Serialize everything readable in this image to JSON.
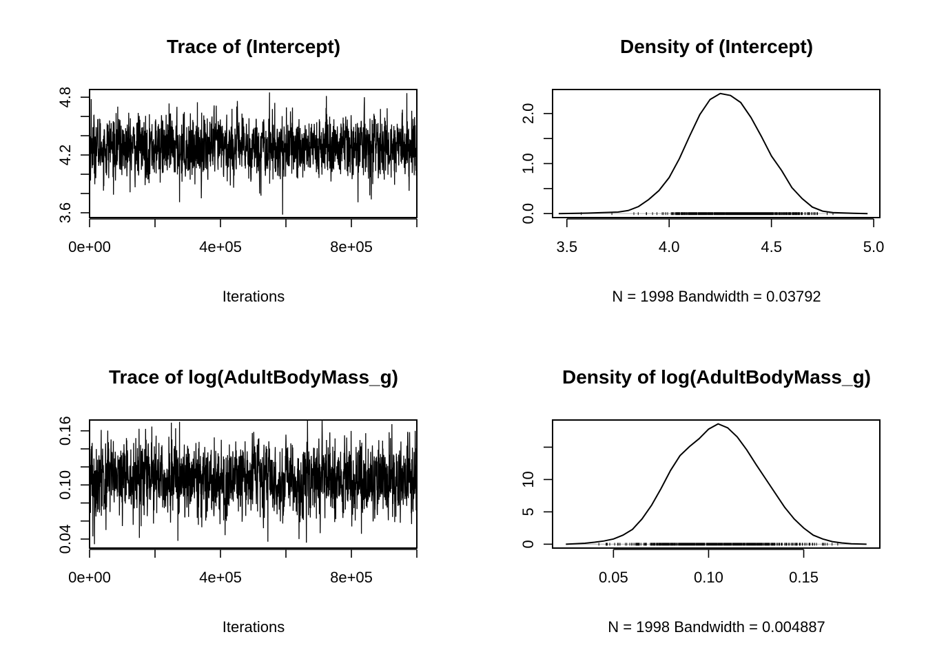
{
  "chart_data": [
    {
      "type": "line",
      "title": "Trace of (Intercept)",
      "xlabel": "Iterations",
      "ylabel": "",
      "xlim": [
        0,
        1000000
      ],
      "ylim": [
        3.55,
        4.88
      ],
      "x_ticks": [
        0,
        200000,
        400000,
        600000,
        800000,
        1000000
      ],
      "x_tick_labels": [
        "0e+00",
        "4e+05",
        "8e+05"
      ],
      "x_tick_label_values": [
        0,
        400000,
        800000
      ],
      "y_ticks": [
        3.6,
        3.8,
        4.0,
        4.2,
        4.4,
        4.6,
        4.8
      ],
      "y_tick_labels": [
        "3.6",
        "4.2",
        "4.8"
      ],
      "y_tick_label_values": [
        3.6,
        4.2,
        4.8
      ],
      "series": [
        {
          "n_samples": 1998,
          "center": 4.28,
          "spread": 0.165,
          "extremes": [
            [
              275000,
              3.71
            ],
            [
              590000,
              3.58
            ],
            [
              440000,
              3.86
            ],
            [
              550000,
              4.85
            ],
            [
              5000,
              4.78
            ],
            [
              840000,
              4.8
            ]
          ]
        }
      ]
    },
    {
      "type": "line",
      "title": "Density of (Intercept)",
      "xlabel": "N = 1998   Bandwidth = 0.03792",
      "ylabel": "",
      "xlim": [
        3.43,
        5.03
      ],
      "ylim": [
        -0.08,
        2.48
      ],
      "x_ticks": [
        3.5,
        4.0,
        4.5,
        5.0
      ],
      "x_tick_labels": [
        "3.5",
        "4.0",
        "4.5",
        "5.0"
      ],
      "x_tick_label_values": [
        3.5,
        4.0,
        4.5,
        5.0
      ],
      "y_ticks": [
        0.0,
        0.5,
        1.0,
        1.5,
        2.0
      ],
      "y_tick_labels": [
        "0.0",
        "1.0",
        "2.0"
      ],
      "y_tick_label_values": [
        0.0,
        1.0,
        2.0
      ],
      "series": [
        {
          "x": [
            3.46,
            3.6,
            3.75,
            3.8,
            3.85,
            3.9,
            3.95,
            4.0,
            4.05,
            4.1,
            4.15,
            4.2,
            4.25,
            4.3,
            4.35,
            4.4,
            4.45,
            4.5,
            4.55,
            4.6,
            4.65,
            4.7,
            4.75,
            4.8,
            4.9,
            4.97
          ],
          "y": [
            0.0,
            0.01,
            0.03,
            0.06,
            0.14,
            0.28,
            0.46,
            0.72,
            1.1,
            1.55,
            1.98,
            2.28,
            2.4,
            2.36,
            2.22,
            1.92,
            1.55,
            1.15,
            0.86,
            0.52,
            0.3,
            0.13,
            0.05,
            0.02,
            0.005,
            0.0
          ]
        }
      ],
      "rug_range": [
        3.8,
        4.85
      ],
      "rug_outliers": [
        3.57,
        3.72
      ]
    },
    {
      "type": "line",
      "title": "Trace of log(AdultBodyMass_g)",
      "xlabel": "Iterations",
      "ylabel": "",
      "xlim": [
        0,
        1000000
      ],
      "ylim": [
        0.03,
        0.172
      ],
      "x_ticks": [
        0,
        200000,
        400000,
        600000,
        800000,
        1000000
      ],
      "x_tick_labels": [
        "0e+00",
        "4e+05",
        "8e+05"
      ],
      "x_tick_label_values": [
        0,
        400000,
        800000
      ],
      "y_ticks": [
        0.04,
        0.06,
        0.08,
        0.1,
        0.12,
        0.14,
        0.16
      ],
      "y_tick_labels": [
        "0.04",
        "0.10",
        "0.16"
      ],
      "y_tick_label_values": [
        0.04,
        0.1,
        0.16
      ],
      "series": [
        {
          "n_samples": 1998,
          "center": 0.106,
          "spread": 0.021,
          "extremes": [
            [
              250000,
              0.169
            ],
            [
              275000,
              0.17
            ],
            [
              270000,
              0.038
            ],
            [
              545000,
              0.037
            ],
            [
              10000,
              0.043
            ],
            [
              995000,
              0.16
            ],
            [
              640000,
              0.04
            ]
          ]
        }
      ]
    },
    {
      "type": "line",
      "title": "Density of log(AdultBodyMass_g)",
      "xlabel": "N = 1998   Bandwidth = 0.004887",
      "ylabel": "",
      "xlim": [
        0.018,
        0.19
      ],
      "ylim": [
        -0.6,
        19.2
      ],
      "x_ticks": [
        0.05,
        0.1,
        0.15
      ],
      "x_tick_labels": [
        "0.05",
        "0.10",
        "0.15"
      ],
      "x_tick_label_values": [
        0.05,
        0.1,
        0.15
      ],
      "y_ticks": [
        0,
        5,
        10,
        15
      ],
      "y_tick_labels": [
        "0",
        "5",
        "10"
      ],
      "y_tick_label_values": [
        0,
        5,
        10
      ],
      "series": [
        {
          "x": [
            0.025,
            0.035,
            0.04,
            0.045,
            0.05,
            0.055,
            0.06,
            0.065,
            0.07,
            0.075,
            0.08,
            0.085,
            0.09,
            0.095,
            0.1,
            0.105,
            0.11,
            0.115,
            0.12,
            0.125,
            0.13,
            0.135,
            0.14,
            0.145,
            0.15,
            0.155,
            0.16,
            0.165,
            0.17,
            0.175,
            0.183
          ],
          "y": [
            0.0,
            0.15,
            0.3,
            0.5,
            0.8,
            1.4,
            2.3,
            3.9,
            6.0,
            8.6,
            11.4,
            13.7,
            15.1,
            16.3,
            17.8,
            18.6,
            18.0,
            16.6,
            14.6,
            12.3,
            10.1,
            7.9,
            5.7,
            3.9,
            2.5,
            1.4,
            0.8,
            0.4,
            0.2,
            0.06,
            0.0
          ]
        }
      ],
      "rug_range": [
        0.04,
        0.17
      ],
      "rug_outliers": []
    }
  ]
}
